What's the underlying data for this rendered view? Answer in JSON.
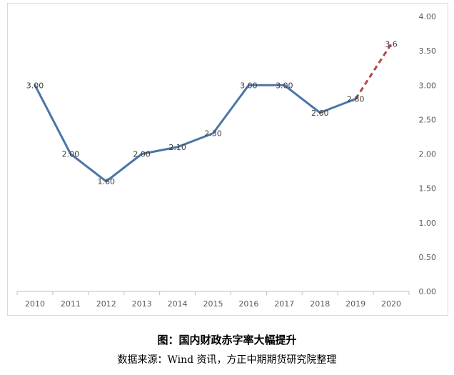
{
  "chart_data": {
    "type": "line",
    "categories": [
      "2010",
      "2011",
      "2012",
      "2013",
      "2014",
      "2015",
      "2016",
      "2017",
      "2018",
      "2019",
      "2020"
    ],
    "series": [
      {
        "values": [
          3.0,
          2.0,
          1.6,
          2.0,
          2.1,
          2.3,
          3.0,
          3.0,
          2.6,
          2.8,
          null
        ],
        "labels": [
          "3.00",
          "2.00",
          "1.60",
          "2.00",
          "2.10",
          "2.30",
          "3.00",
          "3.00",
          "2.60",
          "2.80",
          ""
        ],
        "color": "#4a76a8",
        "style": "solid"
      },
      {
        "values": [
          null,
          null,
          null,
          null,
          null,
          null,
          null,
          null,
          null,
          2.8,
          3.6
        ],
        "labels": [
          "",
          "",
          "",
          "",
          "",
          "",
          "",
          "",
          "",
          "",
          "3.6"
        ],
        "color": "#b0474a",
        "style": "dashed"
      }
    ],
    "yaxis": {
      "position": "right",
      "range": [
        0,
        4
      ],
      "ticks": [
        "0.00",
        "0.50",
        "1.00",
        "1.50",
        "2.00",
        "2.50",
        "3.00",
        "3.50",
        "4.00"
      ]
    },
    "grid": false,
    "legend": "none"
  },
  "caption": {
    "title": "图：国内财政赤字率大幅提升",
    "source": "数据来源：Wind 资讯，方正中期期货研究院整理"
  }
}
